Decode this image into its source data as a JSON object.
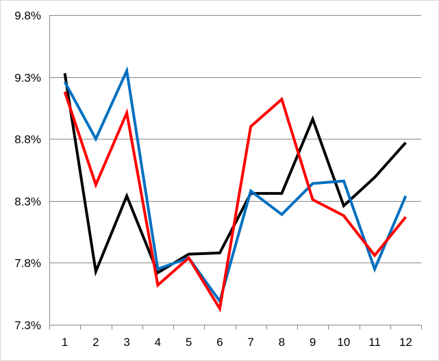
{
  "chart_data": {
    "type": "line",
    "title": "",
    "xlabel": "",
    "ylabel": "",
    "categories": [
      "1",
      "2",
      "3",
      "4",
      "5",
      "6",
      "7",
      "8",
      "9",
      "10",
      "11",
      "12"
    ],
    "y_tick_labels": [
      "7.3%",
      "7.8%",
      "8.3%",
      "8.8%",
      "9.3%",
      "9.8%"
    ],
    "y_ticks": [
      7.3,
      7.8,
      8.3,
      8.8,
      9.3,
      9.8
    ],
    "ylim": [
      7.3,
      9.8
    ],
    "grid": true,
    "legend": "none",
    "series": [
      {
        "color": "#000000",
        "values": [
          9.33,
          7.73,
          8.34,
          7.72,
          7.87,
          7.88,
          8.36,
          8.36,
          8.96,
          8.26,
          8.49,
          8.77
        ]
      },
      {
        "color": "#0070C0",
        "values": [
          9.26,
          8.8,
          9.35,
          7.75,
          7.84,
          7.49,
          8.38,
          8.19,
          8.44,
          8.46,
          7.75,
          8.34
        ]
      },
      {
        "color": "#FF0000",
        "values": [
          9.18,
          8.43,
          9.01,
          7.62,
          7.84,
          7.43,
          8.9,
          9.12,
          8.31,
          8.18,
          7.86,
          8.17
        ]
      }
    ]
  }
}
